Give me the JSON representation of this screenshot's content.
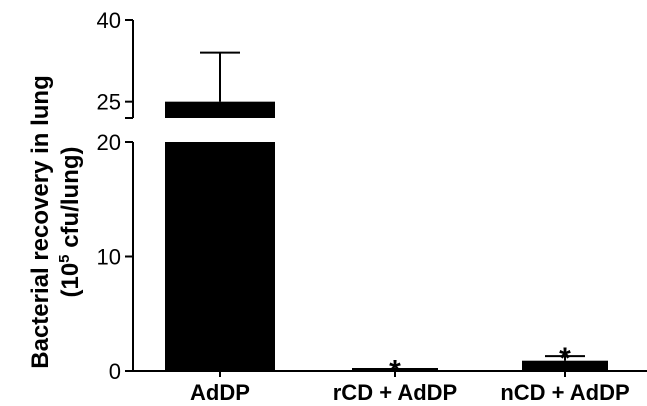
{
  "chart_data": {
    "type": "bar",
    "categories": [
      "AdDP",
      "rCD + AdDP",
      "nCD + AdDP"
    ],
    "values": [
      25,
      0.2,
      0.9
    ],
    "error_upper": [
      34,
      0.2,
      1.3
    ],
    "annotations": [
      "",
      "*",
      "*"
    ],
    "ylabel_line1": "Bacterial recovery in lung",
    "ylabel_line2_prefix": "(10",
    "ylabel_line2_sup": "5",
    "ylabel_line2_suffix": " cfu/lung)",
    "axis_break": {
      "lower_range": [
        0,
        20
      ],
      "upper_range": [
        22,
        40
      ]
    },
    "yticks_lower": [
      0,
      10,
      20
    ],
    "yticks_upper": [
      25,
      40
    ],
    "bar_color": "#000000"
  }
}
